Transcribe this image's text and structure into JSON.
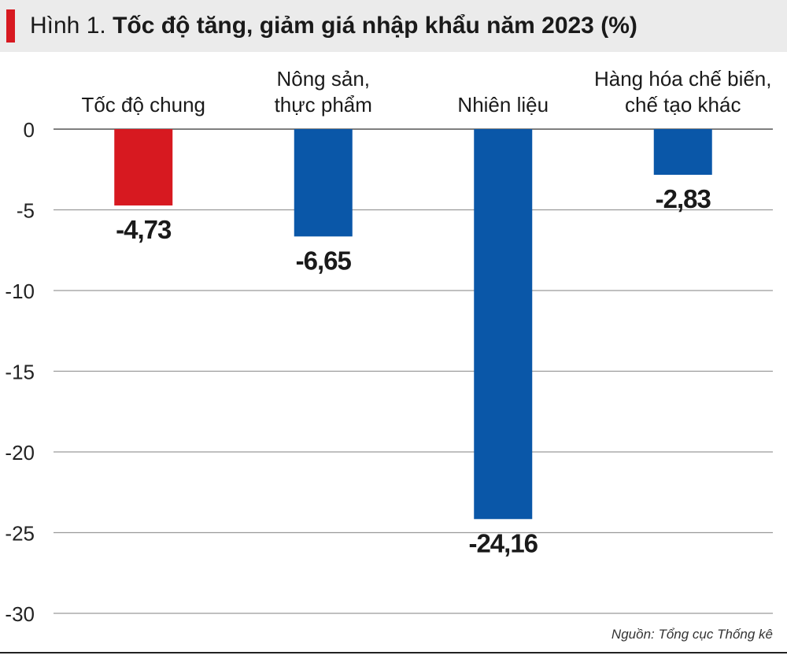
{
  "header": {
    "prefix": "Hình 1.",
    "title": "Tốc độ tăng, giảm giá nhập khẩu năm 2023 (%)"
  },
  "source": "Nguồn: Tổng cục Thống kê",
  "colors": {
    "accent": "#d71920",
    "highlight_bar": "#d71920",
    "bar": "#0a57a8",
    "grid": "#9a9a9a",
    "header_bg": "#ebebeb"
  },
  "chart_data": {
    "type": "bar",
    "title": "Tốc độ tăng, giảm giá nhập khẩu năm 2023 (%)",
    "categories": [
      [
        "Tốc độ chung"
      ],
      [
        "Nông sản,",
        "thực phẩm"
      ],
      [
        "Nhiên liệu"
      ],
      [
        "Hàng hóa chế biến,",
        "chế tạo khác"
      ]
    ],
    "values": [
      -4.73,
      -6.65,
      -24.16,
      -2.83
    ],
    "value_labels": [
      "-4,73",
      "-6,65",
      "-24,16",
      "-2,83"
    ],
    "highlight_index": 0,
    "yticks": [
      0,
      -5,
      -10,
      -15,
      -20,
      -25,
      -30
    ],
    "ytick_labels": [
      "0",
      "-5",
      "-10",
      "-15",
      "-20",
      "-25",
      "-30"
    ],
    "ylim": [
      -30,
      0
    ],
    "grid": true,
    "legend": "none"
  }
}
